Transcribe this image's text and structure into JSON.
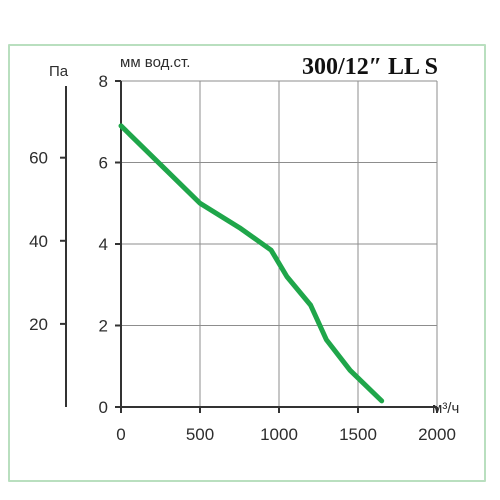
{
  "chart_data": {
    "type": "line",
    "title": "300/12″ LL S",
    "xlabel": "м³/ч",
    "ylabel": "мм вод.ст.",
    "secondary_ylabel": "Па",
    "xlim": [
      0,
      2000
    ],
    "ylim": [
      0,
      8
    ],
    "xticks": [
      0,
      500,
      1000,
      1500,
      2000
    ],
    "yticks": [
      0,
      2,
      4,
      6,
      8
    ],
    "secondary_yticks": [
      20,
      40,
      60
    ],
    "grid": true,
    "colors": {
      "line": "#1fa64a",
      "grid": "#8d8d8d",
      "axis": "#333333",
      "border": "#b9dfbf"
    },
    "series": [
      {
        "x": [
          0,
          250,
          500,
          750,
          950,
          1050,
          1200,
          1300,
          1450,
          1650
        ],
        "values": [
          6.9,
          5.95,
          5.0,
          4.4,
          3.85,
          3.2,
          2.5,
          1.65,
          0.9,
          0.15
        ]
      }
    ]
  }
}
